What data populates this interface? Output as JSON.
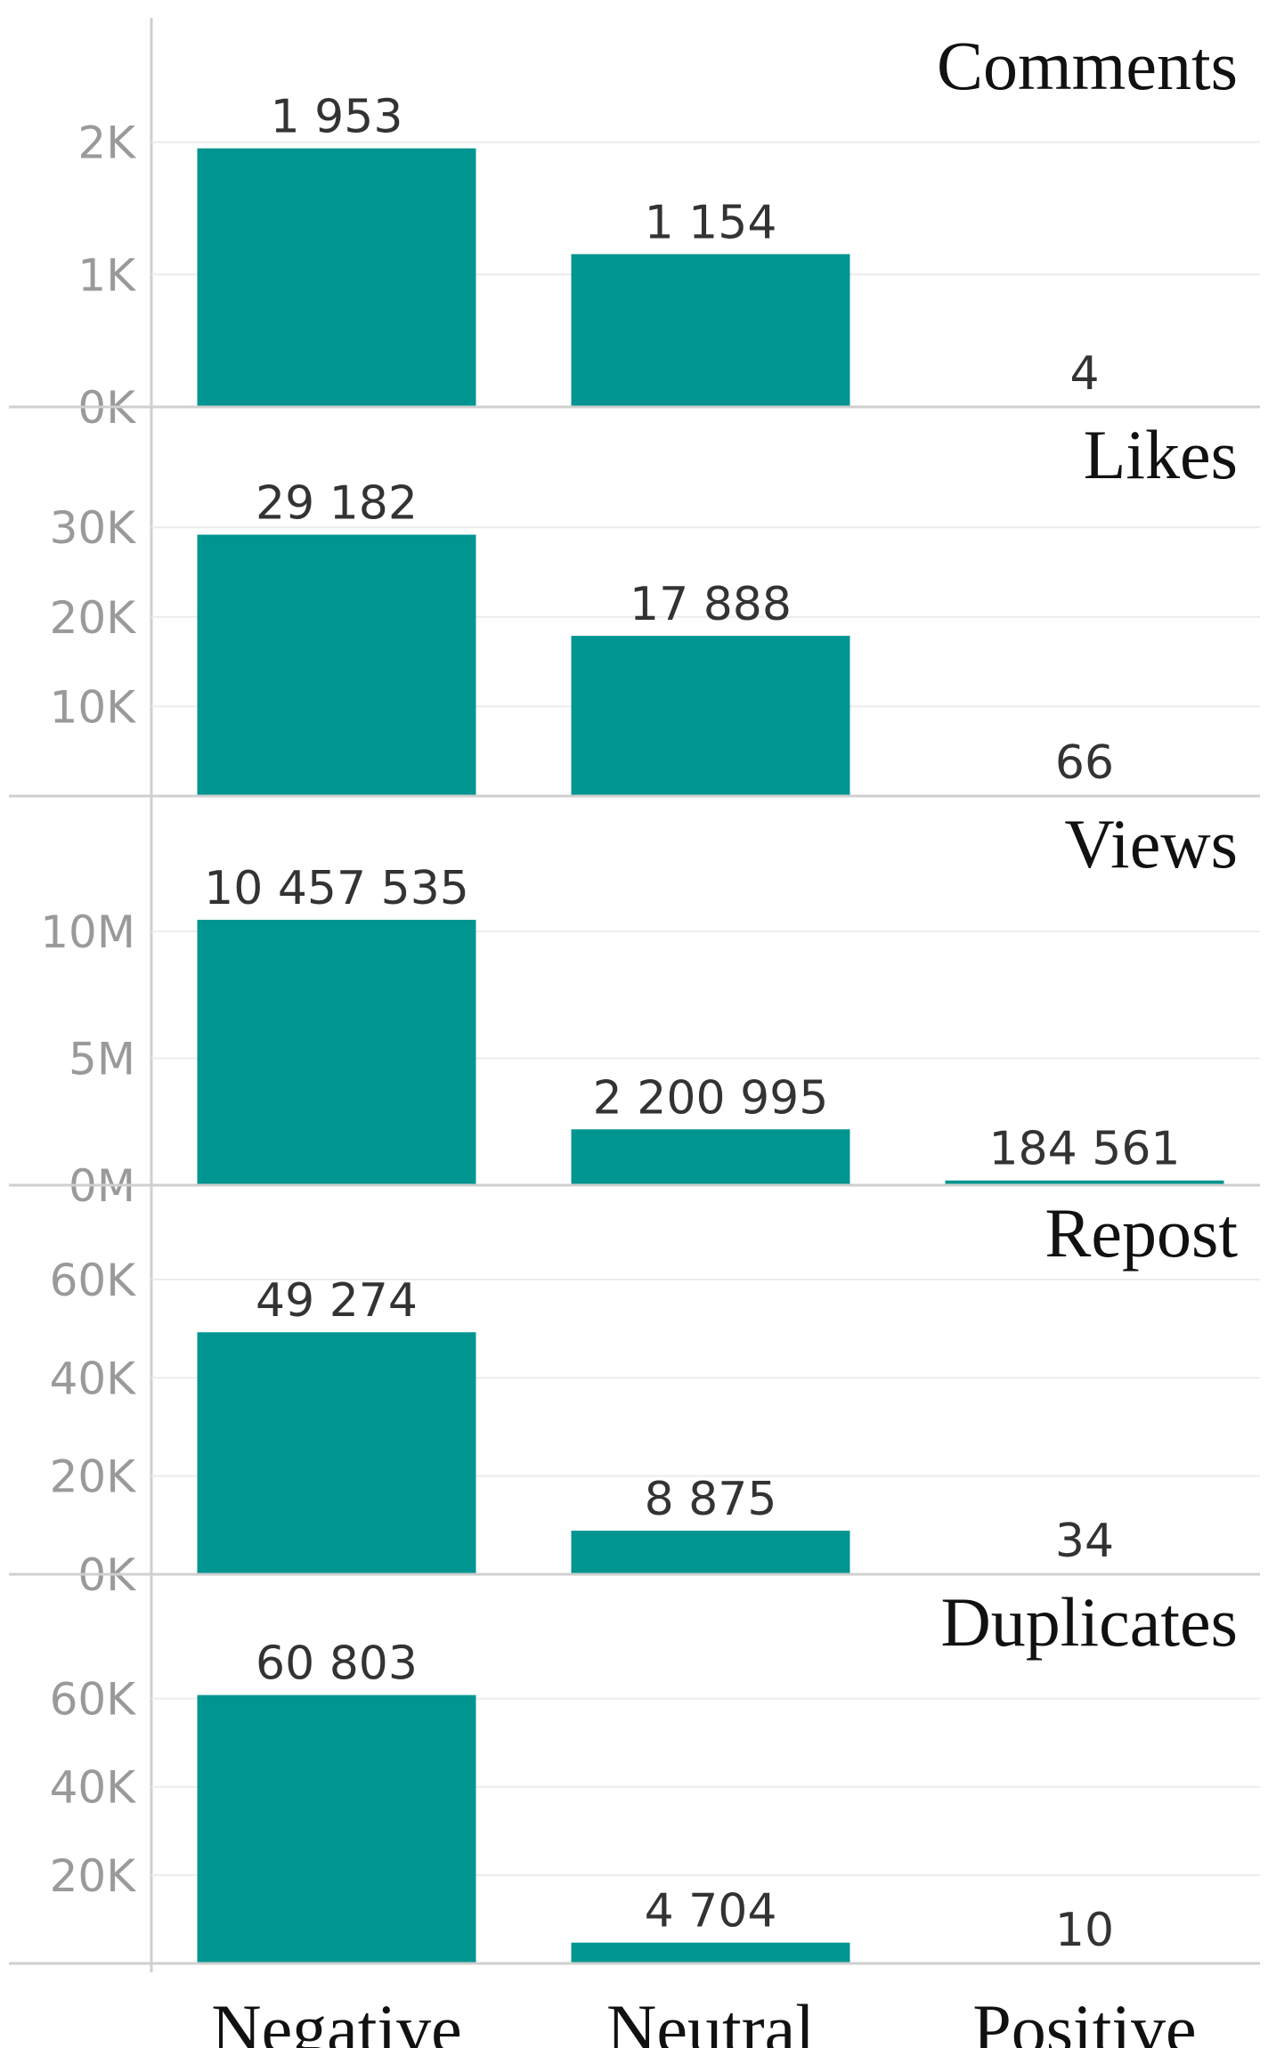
{
  "chart_data": {
    "type": "bar",
    "layout": "small-multiples",
    "categories": [
      "Negative",
      "Neutral",
      "Positive"
    ],
    "bar_color": "#009590",
    "grid": true,
    "panels": [
      {
        "title": "Comments",
        "values": [
          1953,
          1154,
          4
        ],
        "value_labels": [
          "1 953",
          "1 154",
          "4"
        ],
        "ylim": [
          0,
          2300
        ],
        "ticks": [
          {
            "value": 2000,
            "label": "2K"
          },
          {
            "value": 1000,
            "label": "1K"
          },
          {
            "value": 0,
            "label": "0K"
          }
        ]
      },
      {
        "title": "Likes",
        "values": [
          29182,
          17888,
          66
        ],
        "value_labels": [
          "29 182",
          "17 888",
          "66"
        ],
        "ylim": [
          0,
          34000
        ],
        "ticks": [
          {
            "value": 30000,
            "label": "30K"
          },
          {
            "value": 20000,
            "label": "20K"
          },
          {
            "value": 10000,
            "label": "10K"
          }
        ]
      },
      {
        "title": "Views",
        "values": [
          10457535,
          2200995,
          184561
        ],
        "value_labels": [
          "10 457 535",
          "2 200 995",
          "184 561"
        ],
        "ylim": [
          0,
          12000000
        ],
        "ticks": [
          {
            "value": 10000000,
            "label": "10M"
          },
          {
            "value": 5000000,
            "label": "5M"
          },
          {
            "value": 0,
            "label": "0M"
          }
        ]
      },
      {
        "title": "Repost",
        "values": [
          49274,
          8875,
          34
        ],
        "value_labels": [
          "49 274",
          "8 875",
          "34"
        ],
        "ylim": [
          0,
          62000
        ],
        "ticks": [
          {
            "value": 60000,
            "label": "60K"
          },
          {
            "value": 40000,
            "label": "40K"
          },
          {
            "value": 20000,
            "label": "20K"
          },
          {
            "value": 0,
            "label": "0K"
          }
        ]
      },
      {
        "title": "Duplicates",
        "values": [
          60803,
          4704,
          10
        ],
        "value_labels": [
          "60 803",
          "4 704",
          "10"
        ],
        "ylim": [
          0,
          69000
        ],
        "ticks": [
          {
            "value": 60000,
            "label": "60K"
          },
          {
            "value": 40000,
            "label": "40K"
          },
          {
            "value": 20000,
            "label": "20K"
          }
        ]
      }
    ]
  }
}
